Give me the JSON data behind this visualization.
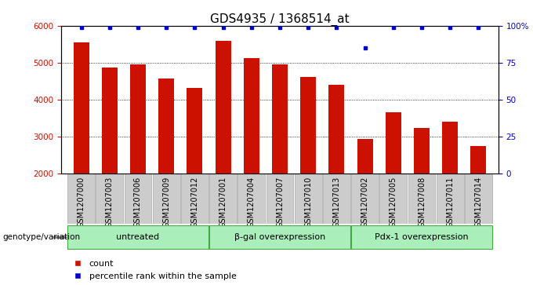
{
  "title": "GDS4935 / 1368514_at",
  "samples": [
    "GSM1207000",
    "GSM1207003",
    "GSM1207006",
    "GSM1207009",
    "GSM1207012",
    "GSM1207001",
    "GSM1207004",
    "GSM1207007",
    "GSM1207010",
    "GSM1207013",
    "GSM1207002",
    "GSM1207005",
    "GSM1207008",
    "GSM1207011",
    "GSM1207014"
  ],
  "counts": [
    5550,
    4880,
    4960,
    4580,
    4320,
    5580,
    5120,
    4960,
    4620,
    4400,
    2940,
    3660,
    3230,
    3400,
    2760
  ],
  "percentiles": [
    99,
    99,
    99,
    99,
    99,
    99,
    99,
    99,
    99,
    99,
    85,
    99,
    99,
    99,
    99
  ],
  "bar_color": "#cc1100",
  "dot_color": "#0000cc",
  "ylim_left": [
    2000,
    6000
  ],
  "ylim_right": [
    0,
    100
  ],
  "yticks_left": [
    2000,
    3000,
    4000,
    5000,
    6000
  ],
  "yticks_right": [
    0,
    25,
    50,
    75,
    100
  ],
  "yticklabels_right": [
    "0",
    "25",
    "50",
    "75",
    "100%"
  ],
  "groups": [
    {
      "label": "untreated",
      "start": 0,
      "end": 5
    },
    {
      "label": "β-gal overexpression",
      "start": 5,
      "end": 10
    },
    {
      "label": "Pdx-1 overexpression",
      "start": 10,
      "end": 15
    }
  ],
  "group_color": "#aaeebb",
  "group_edge_color": "#44aa44",
  "xlabel_area": "genotype/variation",
  "legend_count_label": "count",
  "legend_pct_label": "percentile rank within the sample",
  "bar_width": 0.55,
  "title_fontsize": 11,
  "tick_fontsize": 7.5,
  "bg_color_bars": "#cccccc",
  "bg_color_bars_edge": "#999999"
}
